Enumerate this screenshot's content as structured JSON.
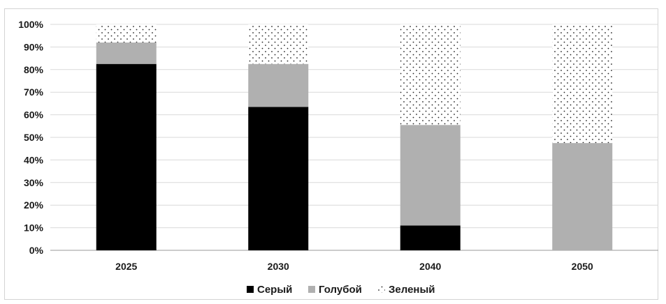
{
  "chart_data": {
    "type": "bar",
    "stacked": true,
    "categories": [
      "2025",
      "2030",
      "2040",
      "2050"
    ],
    "series": [
      {
        "name": "Серый",
        "values": [
          82.5,
          63.5,
          11,
          0
        ],
        "color": "#000000",
        "pattern": "solid"
      },
      {
        "name": "Голубой",
        "values": [
          9.5,
          19,
          44.5,
          47.5
        ],
        "color": "#b0b0b0",
        "pattern": "solid"
      },
      {
        "name": "Зеленый",
        "values": [
          8,
          17.5,
          44.5,
          52.5
        ],
        "color": "#ffffff",
        "pattern": "dots"
      }
    ],
    "y_ticks": [
      "0%",
      "10%",
      "20%",
      "30%",
      "40%",
      "50%",
      "60%",
      "70%",
      "80%",
      "90%",
      "100%"
    ],
    "ylim": [
      0,
      100
    ],
    "grid": true,
    "legend_position": "bottom",
    "title": "",
    "xlabel": "",
    "ylabel": ""
  }
}
